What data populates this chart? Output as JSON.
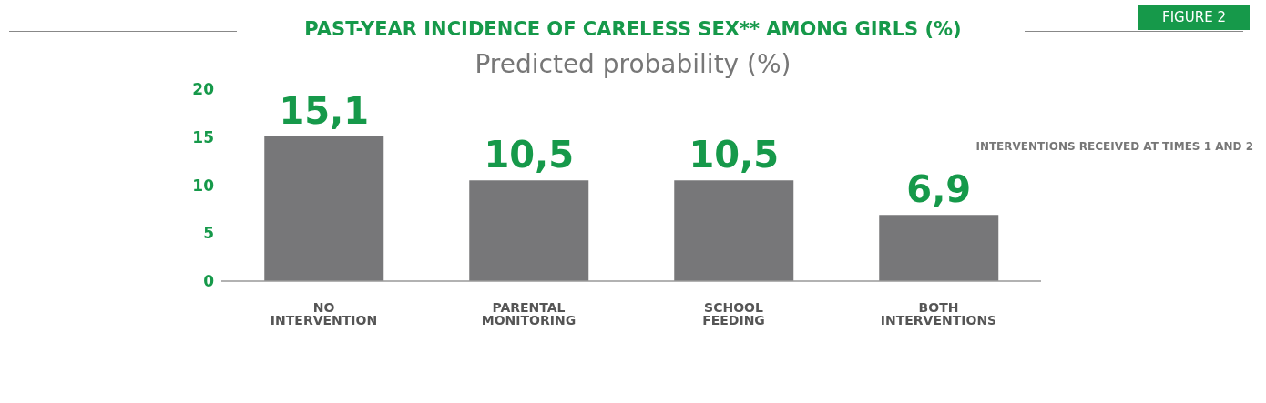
{
  "chart_data": {
    "type": "bar",
    "title": "PAST-YEAR INCIDENCE OF CARELESS SEX** AMONG GIRLS (%)",
    "subtitle": "Predicted probability (%)",
    "annotations": [
      "FIGURE 2",
      "INTERVENTIONS RECEIVED AT TIMES 1 AND 2"
    ],
    "categories": [
      "NO INTERVENTION",
      "PARENTAL MONITORING",
      "SCHOOL FEEDING",
      "BOTH INTERVENTIONS"
    ],
    "values": [
      15.1,
      10.5,
      10.5,
      6.9
    ],
    "value_labels": [
      "15,1",
      "10,5",
      "10,5",
      "6,9"
    ],
    "color": "#777779",
    "ylim": [
      0,
      20
    ],
    "yticks": [
      0,
      5,
      10,
      15,
      20
    ],
    "grid": false,
    "legend": false
  }
}
